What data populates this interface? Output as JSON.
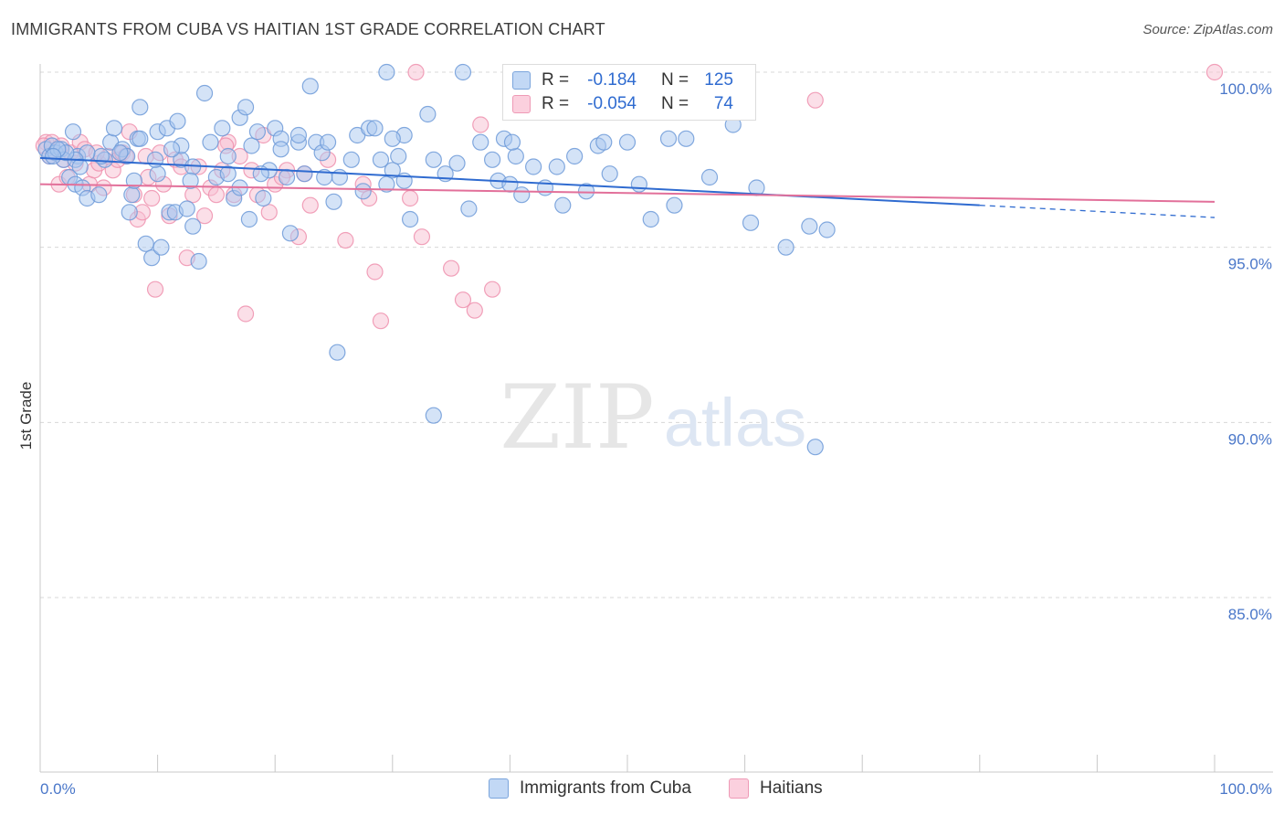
{
  "title": "IMMIGRANTS FROM CUBA VS HAITIAN 1ST GRADE CORRELATION CHART",
  "source": "Source: ZipAtlas.com",
  "watermark": {
    "zip": "ZIP",
    "atlas": "atlas"
  },
  "colors": {
    "cuba_fill": "#aac8f0",
    "cuba_stroke": "#6d9ad8",
    "cuba_line": "#2f6bd0",
    "haiti_fill": "#f8c0d2",
    "haiti_stroke": "#ee90ae",
    "haiti_line": "#e2709a",
    "grid": "#d8d8d8",
    "tick_text": "#4a77c9"
  },
  "legend": {
    "rows": [
      {
        "r_label": "R =",
        "r_value": "-0.184",
        "n_label": "N =",
        "n_value": "125"
      },
      {
        "r_label": "R =",
        "r_value": "-0.054",
        "n_label": "N =",
        "n_value": "74"
      }
    ]
  },
  "bottom_legend": {
    "cuba": "Immigrants from Cuba",
    "haiti": "Haitians"
  },
  "chart_data": {
    "type": "scatter",
    "title": "IMMIGRANTS FROM CUBA VS HAITIAN 1ST GRADE CORRELATION CHART",
    "xlabel": "",
    "ylabel": "1st Grade",
    "xlim": [
      0,
      100
    ],
    "ylim": [
      80.5,
      100.3
    ],
    "x_tick_labels": [
      "0.0%",
      "100.0%"
    ],
    "y_ticks": [
      85,
      90,
      95,
      100
    ],
    "y_tick_labels": [
      "85.0%",
      "90.0%",
      "95.0%",
      "100.0%"
    ],
    "grid": true,
    "series": [
      {
        "name": "Immigrants from Cuba",
        "r": -0.184,
        "n": 125,
        "trend": {
          "x0": 0,
          "y0": 97.55,
          "x1": 80,
          "y1": 96.2,
          "dash_to_x": 100,
          "dash_to_y": 95.85
        },
        "points": [
          [
            0.5,
            97.8
          ],
          [
            0.8,
            97.6
          ],
          [
            1.0,
            97.9
          ],
          [
            1.3,
            97.7
          ],
          [
            1.8,
            97.8
          ],
          [
            2.0,
            97.5
          ],
          [
            2.5,
            97.0
          ],
          [
            3.0,
            96.8
          ],
          [
            3.2,
            97.6
          ],
          [
            3.6,
            96.7
          ],
          [
            4.0,
            96.4
          ],
          [
            5.0,
            96.5
          ],
          [
            5.5,
            97.5
          ],
          [
            6.0,
            98.0
          ],
          [
            6.3,
            98.4
          ],
          [
            7.0,
            97.8
          ],
          [
            7.4,
            97.6
          ],
          [
            7.8,
            96.5
          ],
          [
            8.0,
            96.9
          ],
          [
            8.3,
            98.1
          ],
          [
            8.5,
            99.0
          ],
          [
            9.0,
            95.1
          ],
          [
            9.5,
            94.7
          ],
          [
            10.0,
            98.3
          ],
          [
            10.3,
            95.0
          ],
          [
            10.8,
            98.4
          ],
          [
            11.0,
            96.0
          ],
          [
            11.5,
            96.0
          ],
          [
            11.7,
            98.6
          ],
          [
            12.0,
            97.5
          ],
          [
            12.5,
            96.1
          ],
          [
            13.0,
            97.3
          ],
          [
            13.5,
            94.6
          ],
          [
            14.0,
            99.4
          ],
          [
            14.5,
            98.0
          ],
          [
            15.0,
            97.0
          ],
          [
            15.5,
            98.4
          ],
          [
            16.0,
            97.6
          ],
          [
            16.5,
            96.4
          ],
          [
            17.0,
            98.7
          ],
          [
            17.5,
            99.0
          ],
          [
            17.8,
            95.8
          ],
          [
            18.0,
            97.9
          ],
          [
            18.5,
            98.3
          ],
          [
            19.0,
            96.4
          ],
          [
            19.5,
            97.2
          ],
          [
            20.0,
            98.4
          ],
          [
            20.5,
            98.1
          ],
          [
            21.0,
            97.0
          ],
          [
            21.3,
            95.4
          ],
          [
            22.0,
            98.0
          ],
          [
            22.5,
            97.1
          ],
          [
            23.0,
            99.6
          ],
          [
            23.5,
            98.0
          ],
          [
            24.0,
            97.7
          ],
          [
            24.5,
            98.0
          ],
          [
            25.0,
            96.3
          ],
          [
            25.5,
            97.0
          ],
          [
            25.3,
            92.0
          ],
          [
            27.0,
            98.2
          ],
          [
            27.5,
            96.6
          ],
          [
            28.0,
            98.4
          ],
          [
            28.5,
            98.4
          ],
          [
            29.0,
            97.5
          ],
          [
            29.5,
            96.8
          ],
          [
            30.0,
            97.2
          ],
          [
            30.5,
            97.6
          ],
          [
            31.0,
            96.9
          ],
          [
            31.5,
            95.8
          ],
          [
            31.0,
            98.2
          ],
          [
            33.0,
            98.8
          ],
          [
            33.5,
            97.5
          ],
          [
            34.5,
            97.1
          ],
          [
            35.5,
            97.4
          ],
          [
            36.0,
            100.0
          ],
          [
            36.5,
            96.1
          ],
          [
            37.5,
            98.0
          ],
          [
            38.5,
            97.5
          ],
          [
            39.0,
            96.9
          ],
          [
            39.5,
            98.1
          ],
          [
            40.0,
            96.8
          ],
          [
            40.5,
            97.6
          ],
          [
            41.0,
            96.5
          ],
          [
            42.0,
            97.3
          ],
          [
            43.0,
            96.7
          ],
          [
            44.0,
            97.3
          ],
          [
            44.5,
            96.2
          ],
          [
            45.5,
            97.6
          ],
          [
            46.5,
            96.6
          ],
          [
            47.5,
            97.9
          ],
          [
            48.0,
            98.0
          ],
          [
            48.5,
            97.1
          ],
          [
            50.0,
            98.0
          ],
          [
            51.0,
            96.8
          ],
          [
            52.0,
            95.8
          ],
          [
            53.5,
            98.1
          ],
          [
            54.0,
            96.2
          ],
          [
            55.0,
            98.1
          ],
          [
            57.0,
            97.0
          ],
          [
            58.5,
            99.5
          ],
          [
            59.0,
            98.5
          ],
          [
            60.5,
            95.7
          ],
          [
            61.0,
            96.7
          ],
          [
            63.5,
            95.0
          ],
          [
            65.5,
            95.6
          ],
          [
            66.0,
            89.3
          ],
          [
            67.0,
            95.5
          ],
          [
            30.0,
            98.1
          ],
          [
            20.5,
            97.8
          ],
          [
            16.0,
            97.1
          ],
          [
            12.0,
            97.9
          ],
          [
            10.0,
            97.1
          ],
          [
            8.5,
            98.1
          ],
          [
            6.8,
            97.7
          ],
          [
            5.2,
            97.6
          ],
          [
            4.0,
            97.7
          ],
          [
            3.0,
            97.5
          ],
          [
            2.2,
            97.7
          ],
          [
            1.5,
            97.8
          ],
          [
            1.1,
            97.6
          ],
          [
            2.8,
            98.3
          ],
          [
            33.5,
            90.2
          ],
          [
            29.5,
            100.0
          ],
          [
            22.0,
            98.2
          ],
          [
            9.8,
            97.5
          ],
          [
            11.2,
            97.8
          ],
          [
            7.6,
            96.0
          ],
          [
            13.0,
            95.6
          ],
          [
            17.0,
            96.7
          ],
          [
            18.8,
            97.1
          ],
          [
            26.5,
            97.5
          ],
          [
            3.4,
            97.3
          ],
          [
            12.8,
            96.9
          ],
          [
            40.2,
            98.0
          ],
          [
            24.2,
            97.0
          ]
        ]
      },
      {
        "name": "Haitians",
        "r": -0.054,
        "n": 74,
        "trend": {
          "x0": 0,
          "y0": 96.8,
          "x1": 100,
          "y1": 96.3
        },
        "points": [
          [
            0.5,
            98.0
          ],
          [
            0.8,
            97.6
          ],
          [
            1.0,
            98.0
          ],
          [
            1.3,
            97.7
          ],
          [
            1.6,
            96.8
          ],
          [
            2.0,
            97.5
          ],
          [
            2.3,
            97.0
          ],
          [
            2.6,
            97.7
          ],
          [
            3.0,
            97.4
          ],
          [
            3.4,
            98.0
          ],
          [
            3.8,
            97.8
          ],
          [
            4.2,
            96.8
          ],
          [
            4.6,
            97.2
          ],
          [
            5.0,
            97.4
          ],
          [
            5.4,
            96.7
          ],
          [
            5.8,
            97.6
          ],
          [
            6.2,
            97.2
          ],
          [
            6.6,
            97.5
          ],
          [
            7.0,
            97.7
          ],
          [
            7.3,
            97.6
          ],
          [
            7.6,
            98.3
          ],
          [
            8.0,
            96.5
          ],
          [
            8.3,
            95.8
          ],
          [
            8.7,
            96.0
          ],
          [
            9.0,
            97.6
          ],
          [
            9.5,
            96.4
          ],
          [
            9.8,
            93.8
          ],
          [
            10.2,
            97.7
          ],
          [
            10.5,
            96.8
          ],
          [
            11.0,
            95.9
          ],
          [
            11.5,
            97.5
          ],
          [
            12.0,
            97.3
          ],
          [
            12.5,
            94.7
          ],
          [
            13.0,
            96.5
          ],
          [
            13.5,
            97.3
          ],
          [
            14.0,
            95.9
          ],
          [
            14.5,
            96.7
          ],
          [
            15.0,
            96.5
          ],
          [
            15.5,
            97.2
          ],
          [
            16.0,
            98.0
          ],
          [
            16.5,
            96.5
          ],
          [
            17.0,
            97.6
          ],
          [
            17.5,
            93.1
          ],
          [
            18.0,
            97.2
          ],
          [
            18.5,
            96.5
          ],
          [
            19.0,
            98.2
          ],
          [
            19.5,
            96.0
          ],
          [
            20.0,
            96.8
          ],
          [
            21.0,
            97.2
          ],
          [
            22.0,
            95.3
          ],
          [
            22.5,
            97.1
          ],
          [
            23.0,
            96.2
          ],
          [
            24.5,
            97.5
          ],
          [
            26.0,
            95.2
          ],
          [
            27.5,
            96.8
          ],
          [
            28.0,
            96.4
          ],
          [
            28.5,
            94.3
          ],
          [
            29.0,
            92.9
          ],
          [
            31.5,
            96.4
          ],
          [
            32.0,
            100.0
          ],
          [
            32.5,
            95.3
          ],
          [
            35.0,
            94.4
          ],
          [
            36.0,
            93.5
          ],
          [
            37.0,
            93.2
          ],
          [
            37.5,
            98.5
          ],
          [
            38.5,
            93.8
          ],
          [
            66.0,
            99.2
          ],
          [
            100.0,
            100.0
          ],
          [
            0.3,
            97.9
          ],
          [
            1.8,
            97.9
          ],
          [
            4.8,
            97.7
          ],
          [
            9.2,
            97.0
          ],
          [
            15.8,
            97.9
          ],
          [
            20.6,
            97.0
          ]
        ]
      }
    ]
  }
}
